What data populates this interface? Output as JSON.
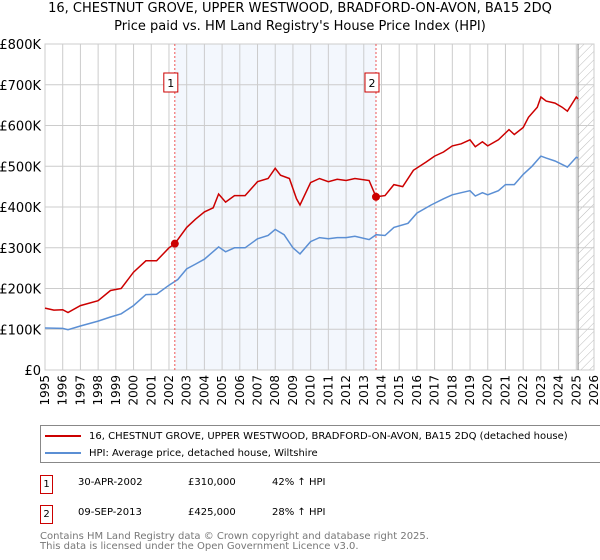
{
  "title_line1": "16, CHESTNUT GROVE, UPPER WESTWOOD, BRADFORD-ON-AVON, BA15 2DQ",
  "title_line2": "Price paid vs. HM Land Registry's House Price Index (HPI)",
  "legend": [
    {
      "label": "16, CHESTNUT GROVE, UPPER WESTWOOD, BRADFORD-ON-AVON, BA15 2DQ (detached house)",
      "color": "#cc0000"
    },
    {
      "label": "HPI: Average price, detached house, Wiltshire",
      "color": "#5b8fd4"
    }
  ],
  "transactions": [
    {
      "num": "1",
      "date": "30-APR-2002",
      "price": "£310,000",
      "hpi": "42% ↑ HPI"
    },
    {
      "num": "2",
      "date": "09-SEP-2013",
      "price": "£425,000",
      "hpi": "28% ↑ HPI"
    }
  ],
  "footer_line1": "Contains HM Land Registry data © Crown copyright and database right 2025.",
  "footer_line2": "This data is licensed under the Open Government Licence v3.0.",
  "chart_data": {
    "type": "line",
    "xlim": [
      1995,
      2026
    ],
    "ylim": [
      0,
      800000
    ],
    "yticks": [
      0,
      100000,
      200000,
      300000,
      400000,
      500000,
      600000,
      700000,
      800000
    ],
    "ytick_labels": [
      "£0",
      "£100K",
      "£200K",
      "£300K",
      "£400K",
      "£500K",
      "£600K",
      "£700K",
      "£800K"
    ],
    "xticks": [
      "1995",
      "1996",
      "1997",
      "1998",
      "1999",
      "2000",
      "2001",
      "2002",
      "2003",
      "2004",
      "2005",
      "2006",
      "2007",
      "2008",
      "2009",
      "2010",
      "2011",
      "2012",
      "2013",
      "2014",
      "2015",
      "2016",
      "2017",
      "2018",
      "2019",
      "2020",
      "2021",
      "2022",
      "2023",
      "2024",
      "2025",
      "2026"
    ],
    "shaded_range": [
      2002.33,
      2013.69
    ],
    "forecast_hatch_from": 2025.1,
    "markers": [
      {
        "label": "1",
        "x": 2002.33,
        "y": 310000
      },
      {
        "label": "2",
        "x": 2013.69,
        "y": 425000
      }
    ],
    "series": [
      {
        "name": "16, CHESTNUT GROVE, UPPER WESTWOOD, BRADFORD-ON-AVON, BA15 2DQ (detached house)",
        "color": "#cc0000",
        "x": [
          1995,
          1995.5,
          1996,
          1996.3,
          1997,
          1998,
          1998.7,
          1999.3,
          2000,
          2000.7,
          2001.3,
          2002,
          2002.33,
          2003,
          2003.5,
          2004,
          2004.5,
          2004.8,
          2005.2,
          2005.7,
          2006.3,
          2007,
          2007.6,
          2008,
          2008.3,
          2008.8,
          2009.2,
          2009.4,
          2010,
          2010.5,
          2011,
          2011.5,
          2012,
          2012.5,
          2013.3,
          2013.69,
          2014.2,
          2014.7,
          2015.2,
          2015.8,
          2016.5,
          2017,
          2017.5,
          2018,
          2018.5,
          2019,
          2019.3,
          2019.7,
          2020,
          2020.6,
          2021.2,
          2021.5,
          2022,
          2022.3,
          2022.8,
          2023,
          2023.3,
          2023.8,
          2024.2,
          2024.5,
          2025,
          2025.1
        ],
        "y": [
          152000,
          147000,
          148000,
          141000,
          158000,
          170000,
          195000,
          200000,
          240000,
          268000,
          268000,
          300000,
          310000,
          350000,
          370000,
          388000,
          398000,
          432000,
          412000,
          428000,
          428000,
          462000,
          470000,
          495000,
          478000,
          470000,
          420000,
          405000,
          460000,
          470000,
          462000,
          468000,
          465000,
          470000,
          465000,
          425000,
          428000,
          455000,
          450000,
          490000,
          510000,
          525000,
          535000,
          550000,
          555000,
          565000,
          548000,
          560000,
          550000,
          565000,
          590000,
          578000,
          595000,
          620000,
          645000,
          670000,
          660000,
          655000,
          645000,
          635000,
          670000,
          665000
        ]
      },
      {
        "name": "HPI: Average price, detached house, Wiltshire",
        "color": "#5b8fd4",
        "x": [
          1995,
          1996,
          1996.3,
          1997,
          1998,
          1998.7,
          1999.3,
          2000,
          2000.7,
          2001.3,
          2002,
          2002.5,
          2003,
          2003.5,
          2004,
          2004.8,
          2005.2,
          2005.7,
          2006.3,
          2007,
          2007.6,
          2008,
          2008.5,
          2009,
          2009.4,
          2010,
          2010.5,
          2011,
          2011.5,
          2012,
          2012.5,
          2013.3,
          2013.7,
          2014.2,
          2014.7,
          2015.5,
          2016,
          2016.8,
          2017.5,
          2018,
          2018.5,
          2019,
          2019.3,
          2019.7,
          2020,
          2020.6,
          2021,
          2021.5,
          2022,
          2022.5,
          2023,
          2023.3,
          2023.8,
          2024.5,
          2025,
          2025.1
        ],
        "y": [
          103000,
          102000,
          99000,
          108000,
          120000,
          130000,
          138000,
          158000,
          185000,
          186000,
          208000,
          222000,
          248000,
          260000,
          272000,
          302000,
          290000,
          300000,
          300000,
          322000,
          330000,
          345000,
          332000,
          300000,
          285000,
          315000,
          325000,
          322000,
          325000,
          325000,
          328000,
          320000,
          332000,
          330000,
          350000,
          360000,
          385000,
          405000,
          420000,
          430000,
          435000,
          440000,
          427000,
          435000,
          430000,
          440000,
          455000,
          455000,
          480000,
          500000,
          525000,
          520000,
          513000,
          498000,
          522000,
          520000
        ]
      }
    ]
  }
}
